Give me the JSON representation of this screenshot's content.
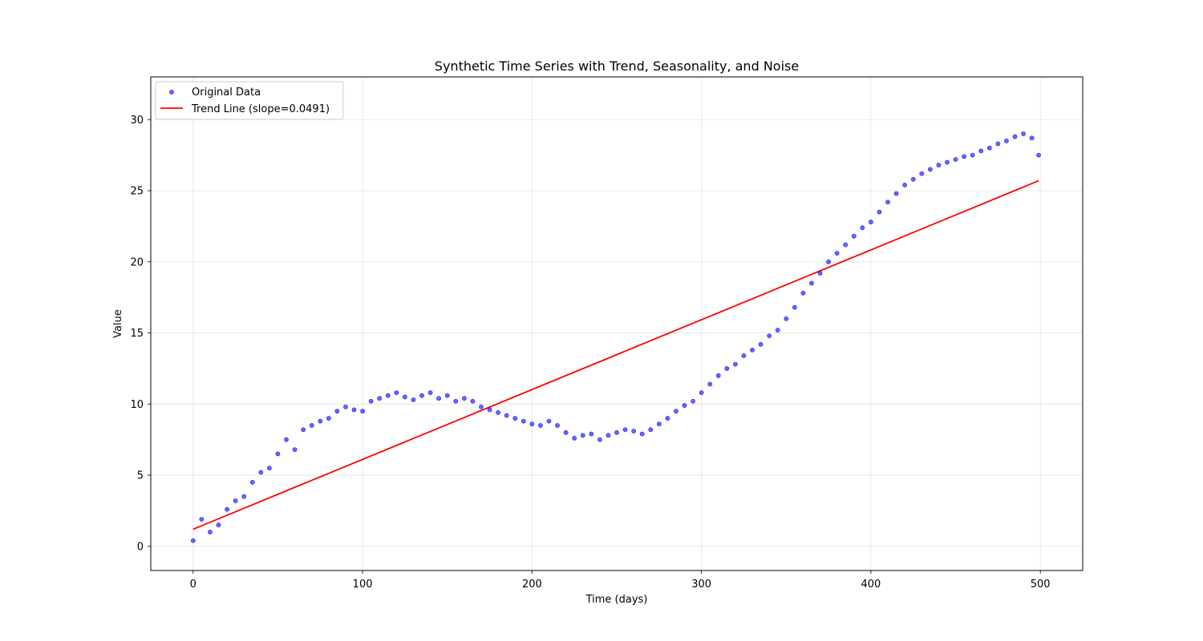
{
  "chart_data": {
    "type": "scatter",
    "title": "Synthetic Time Series with Trend, Seasonality, and Noise",
    "xlabel": "Time (days)",
    "ylabel": "Value",
    "xlim": [
      -25,
      525
    ],
    "ylim": [
      -1.7,
      33.0
    ],
    "xticks": [
      0,
      100,
      200,
      300,
      400,
      500
    ],
    "yticks": [
      0,
      5,
      10,
      15,
      20,
      25,
      30
    ],
    "grid": true,
    "legend_position": "top-left",
    "series": [
      {
        "name": "Original Data",
        "kind": "scatter",
        "color": "#0000ff",
        "x": [
          0,
          5,
          10,
          15,
          20,
          25,
          30,
          35,
          40,
          45,
          50,
          55,
          60,
          65,
          70,
          75,
          80,
          85,
          90,
          95,
          100,
          105,
          110,
          115,
          120,
          125,
          130,
          135,
          140,
          145,
          150,
          155,
          160,
          165,
          170,
          175,
          180,
          185,
          190,
          195,
          200,
          205,
          210,
          215,
          220,
          225,
          230,
          235,
          240,
          245,
          250,
          255,
          260,
          265,
          270,
          275,
          280,
          285,
          290,
          295,
          300,
          305,
          310,
          315,
          320,
          325,
          330,
          335,
          340,
          345,
          350,
          355,
          360,
          365,
          370,
          375,
          380,
          385,
          390,
          395,
          400,
          405,
          410,
          415,
          420,
          425,
          430,
          435,
          440,
          445,
          450,
          455,
          460,
          465,
          470,
          475,
          480,
          485,
          490,
          495,
          499
        ],
        "y": [
          0.4,
          1.9,
          1.0,
          1.5,
          2.6,
          3.2,
          3.5,
          4.5,
          5.2,
          5.5,
          6.5,
          7.5,
          6.8,
          8.2,
          8.5,
          8.8,
          9.0,
          9.5,
          9.8,
          9.6,
          9.5,
          10.2,
          10.4,
          10.6,
          10.8,
          10.5,
          10.3,
          10.6,
          10.8,
          10.4,
          10.6,
          10.2,
          10.4,
          10.2,
          9.8,
          9.6,
          9.4,
          9.2,
          9.0,
          8.8,
          8.6,
          8.5,
          8.8,
          8.5,
          8.0,
          7.6,
          7.8,
          7.9,
          7.5,
          7.8,
          8.0,
          8.2,
          8.1,
          7.9,
          8.2,
          8.6,
          9.0,
          9.5,
          9.9,
          10.2,
          10.8,
          11.4,
          12.0,
          12.5,
          12.8,
          13.4,
          13.8,
          14.2,
          14.8,
          15.2,
          16.0,
          16.8,
          17.8,
          18.5,
          19.2,
          20.0,
          20.6,
          21.2,
          21.8,
          22.4,
          22.8,
          23.5,
          24.2,
          24.8,
          25.4,
          25.8,
          26.2,
          26.5,
          26.8,
          27.0,
          27.2,
          27.4,
          27.5,
          27.8,
          28.0,
          28.3,
          28.5,
          28.8,
          29.0,
          28.7,
          27.5
        ]
      },
      {
        "name": "Trend Line (slope=0.0491)",
        "kind": "line",
        "color": "#ff0000",
        "x": [
          0,
          499
        ],
        "y": [
          1.2,
          25.7
        ]
      }
    ]
  }
}
